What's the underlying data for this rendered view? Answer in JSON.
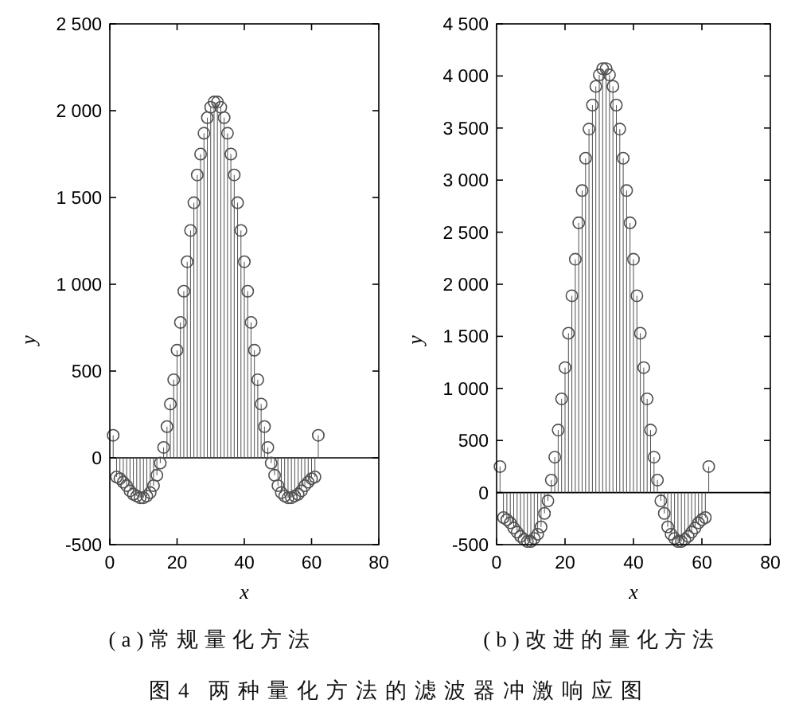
{
  "chart_data": [
    {
      "type": "lollipop",
      "title": "(a)常规量化方法",
      "xlabel": "x",
      "ylabel": "y",
      "x": [
        1,
        2,
        3,
        4,
        5,
        6,
        7,
        8,
        9,
        10,
        11,
        12,
        13,
        14,
        15,
        16,
        17,
        18,
        19,
        20,
        21,
        22,
        23,
        24,
        25,
        26,
        27,
        28,
        29,
        30,
        31,
        32,
        33,
        34,
        35,
        36,
        37,
        38,
        39,
        40,
        41,
        42,
        43,
        44,
        45,
        46,
        47,
        48,
        49,
        50,
        51,
        52,
        53,
        54,
        55,
        56,
        57,
        58,
        59,
        60,
        61,
        62
      ],
      "values": [
        130,
        -110,
        -120,
        -140,
        -160,
        -190,
        -210,
        -220,
        -230,
        -230,
        -220,
        -200,
        -160,
        -100,
        -30,
        60,
        180,
        310,
        450,
        620,
        780,
        960,
        1130,
        1310,
        1470,
        1630,
        1750,
        1870,
        1960,
        2020,
        2050,
        2050,
        2020,
        1960,
        1870,
        1750,
        1630,
        1470,
        1310,
        1130,
        960,
        780,
        620,
        450,
        310,
        180,
        60,
        -30,
        -100,
        -160,
        -200,
        -220,
        -230,
        -230,
        -220,
        -210,
        -190,
        -160,
        -140,
        -120,
        -110,
        130
      ],
      "color": "#505050",
      "marker": "circle",
      "xlim": [
        0,
        80
      ],
      "xticks": [
        0,
        20,
        40,
        60,
        80
      ],
      "ylim": [
        -500,
        2500
      ],
      "yticks": [
        -500,
        0,
        500,
        {
          "value": 1000,
          "label": "1 000"
        },
        {
          "value": 1500,
          "label": "1 500"
        },
        {
          "value": 2000,
          "label": "2 000"
        },
        {
          "value": 2500,
          "label": "2 500"
        }
      ],
      "ref_lines": [
        {
          "axis": "y",
          "value": 0,
          "color": "#000000"
        }
      ],
      "annotations": [
        "图4 两种量化方法的滤波器冲激响应图"
      ]
    },
    {
      "type": "lollipop",
      "title": "(b)改进的量化方法",
      "xlabel": "x",
      "ylabel": "y",
      "x": [
        1,
        2,
        3,
        4,
        5,
        6,
        7,
        8,
        9,
        10,
        11,
        12,
        13,
        14,
        15,
        16,
        17,
        18,
        19,
        20,
        21,
        22,
        23,
        24,
        25,
        26,
        27,
        28,
        29,
        30,
        31,
        32,
        33,
        34,
        35,
        36,
        37,
        38,
        39,
        40,
        41,
        42,
        43,
        44,
        45,
        46,
        47,
        48,
        49,
        50,
        51,
        52,
        53,
        54,
        55,
        56,
        57,
        58,
        59,
        60,
        61,
        62
      ],
      "values": [
        250,
        -240,
        -260,
        -290,
        -340,
        -380,
        -420,
        -450,
        -470,
        -470,
        -440,
        -400,
        -330,
        -200,
        -80,
        120,
        340,
        600,
        900,
        1200,
        1530,
        1890,
        2240,
        2590,
        2900,
        3210,
        3490,
        3720,
        3900,
        4010,
        4070,
        4070,
        4010,
        3900,
        3720,
        3490,
        3210,
        2900,
        2590,
        2240,
        1890,
        1530,
        1200,
        900,
        600,
        340,
        120,
        -80,
        -200,
        -330,
        -400,
        -440,
        -470,
        -470,
        -450,
        -420,
        -380,
        -340,
        -290,
        -260,
        -240,
        250
      ],
      "color": "#505050",
      "marker": "circle",
      "xlim": [
        0,
        80
      ],
      "xticks": [
        0,
        20,
        40,
        60,
        80
      ],
      "ylim": [
        -500,
        4500
      ],
      "yticks": [
        -500,
        0,
        500,
        {
          "value": 1000,
          "label": "1 000"
        },
        {
          "value": 1500,
          "label": "1 500"
        },
        {
          "value": 2000,
          "label": "2 000"
        },
        {
          "value": 2500,
          "label": "2 500"
        },
        {
          "value": 3000,
          "label": "3 000"
        },
        {
          "value": 3500,
          "label": "3 500"
        },
        {
          "value": 4000,
          "label": "4 000"
        },
        {
          "value": 4500,
          "label": "4 500"
        }
      ],
      "ref_lines": [
        {
          "axis": "y",
          "value": 0,
          "color": "#000000"
        }
      ]
    }
  ]
}
